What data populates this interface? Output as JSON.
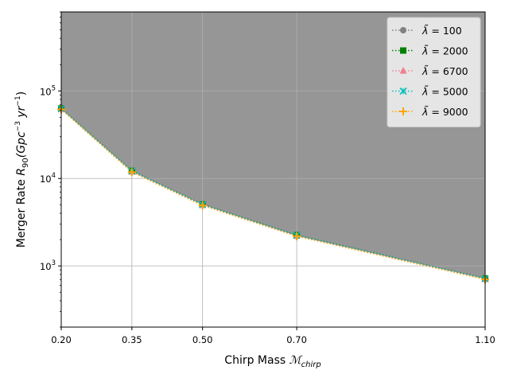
{
  "chart_data": {
    "type": "line",
    "xlabel": "Chirp Mass",
    "xlabel_math": "ℳ",
    "xlabel_sub": "chirp",
    "ylabel_prefix": "Merger Rate ",
    "ylabel_math": "R",
    "ylabel_sub": "90",
    "ylabel_units": "(Gpc",
    "ylabel_exp1": "−3",
    "ylabel_mid": "yr",
    "ylabel_exp2": "−1",
    "ylabel_close": ")",
    "y_scale": "log",
    "xlim": [
      0.2,
      1.1
    ],
    "ylim": [
      200,
      800000
    ],
    "x_ticks": [
      0.2,
      0.35,
      0.5,
      0.7,
      1.1
    ],
    "x_tick_labels": [
      "0.20",
      "0.35",
      "0.50",
      "0.70",
      "1.10"
    ],
    "y_ticks": [
      1000,
      10000,
      100000
    ],
    "y_tick_bases": [
      "10",
      "10",
      "10"
    ],
    "y_tick_exps": [
      "3",
      "4",
      "5"
    ],
    "grid": true,
    "shaded_region": "above curve",
    "shade_color": "#969696",
    "legend_position": "top-right",
    "legend_symbol": "λ̃",
    "legend_sep": " = ",
    "x": [
      0.2,
      0.35,
      0.5,
      0.7,
      1.1
    ],
    "series": [
      {
        "name": "100",
        "marker": "circle",
        "color": "#808080",
        "values": [
          62000,
          12000,
          5000,
          2200,
          710
        ]
      },
      {
        "name": "2000",
        "marker": "square",
        "color": "#008000",
        "values": [
          63000,
          12200,
          5050,
          2250,
          720
        ]
      },
      {
        "name": "6700",
        "marker": "triangle",
        "color": "#f08090",
        "values": [
          62000,
          11900,
          4950,
          2200,
          705
        ]
      },
      {
        "name": "5000",
        "marker": "x",
        "color": "#00bfbf",
        "values": [
          62500,
          12100,
          5000,
          2230,
          715
        ]
      },
      {
        "name": "9000",
        "marker": "plus",
        "color": "#ffa500",
        "values": [
          61500,
          11800,
          4900,
          2180,
          700
        ]
      }
    ]
  }
}
